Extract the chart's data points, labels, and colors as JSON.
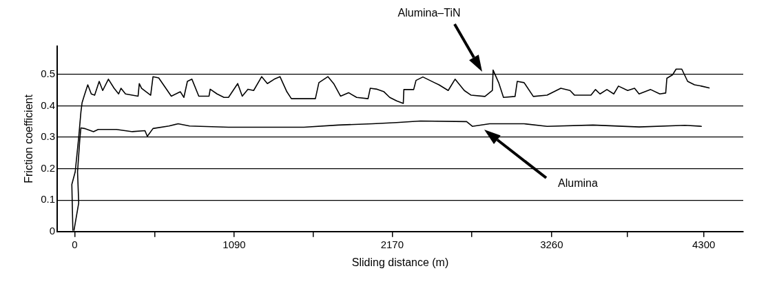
{
  "chart_data": {
    "type": "line",
    "xlabel": "Sliding distance (m)",
    "ylabel": "Friction coefficient",
    "xlim": [
      -120,
      4570
    ],
    "ylim": [
      0,
      0.59
    ],
    "xticks": [
      0,
      {
        "value": 545,
        "label": null
      },
      1090,
      {
        "value": 1630,
        "label": null
      },
      2170,
      {
        "value": 2715,
        "label": null
      },
      3260,
      {
        "value": 3780,
        "label": null
      },
      4300
    ],
    "yticks": [
      0,
      0.1,
      0.2,
      0.3,
      0.4,
      0.5
    ],
    "grid": "y",
    "legend": false,
    "marker": "none",
    "line_style": "solid",
    "annotations": [
      "Alumina–TiN",
      "Alumina"
    ],
    "series": [
      {
        "color": "#000000",
        "x": [
          -13,
          -20,
          3,
          27,
          42,
          50,
          66,
          89,
          113,
          136,
          167,
          191,
          230,
          269,
          300,
          316,
          347,
          433,
          441,
          457,
          519,
          535,
          574,
          660,
          722,
          746,
          770,
          801,
          848,
          918,
          926,
          973,
          1020,
          1051,
          1114,
          1145,
          1184,
          1223,
          1278,
          1317,
          1364,
          1403,
          1450,
          1481,
          1645,
          1669,
          1731,
          1770,
          1817,
          1872,
          1927,
          2005,
          2020,
          2067,
          2114,
          2153,
          2200,
          2246,
          2250,
          2317,
          2333,
          2380,
          2459,
          2490,
          2553,
          2600,
          2663,
          2710,
          2804,
          2855,
          2860,
          2898,
          2931,
          3010,
          3025,
          3072,
          3135,
          3229,
          3323,
          3386,
          3417,
          3529,
          3560,
          3591,
          3638,
          3685,
          3717,
          3780,
          3827,
          3858,
          3937,
          4000,
          4040,
          4048,
          4087,
          4111,
          4150,
          4190,
          4237,
          4284,
          4337
        ],
        "values": [
          0.004,
          0.15,
          0.19,
          0.3,
          0.38,
          0.41,
          0.434,
          0.467,
          0.438,
          0.434,
          0.478,
          0.449,
          0.485,
          0.456,
          0.438,
          0.456,
          0.438,
          0.431,
          0.471,
          0.456,
          0.434,
          0.493,
          0.489,
          0.431,
          0.445,
          0.427,
          0.478,
          0.485,
          0.431,
          0.431,
          0.453,
          0.438,
          0.427,
          0.427,
          0.471,
          0.431,
          0.453,
          0.449,
          0.493,
          0.471,
          0.485,
          0.493,
          0.445,
          0.423,
          0.423,
          0.474,
          0.493,
          0.471,
          0.431,
          0.442,
          0.427,
          0.423,
          0.456,
          0.453,
          0.445,
          0.427,
          0.416,
          0.408,
          0.452,
          0.452,
          0.481,
          0.492,
          0.474,
          0.467,
          0.449,
          0.485,
          0.449,
          0.434,
          0.43,
          0.449,
          0.514,
          0.474,
          0.427,
          0.43,
          0.478,
          0.474,
          0.43,
          0.434,
          0.456,
          0.449,
          0.434,
          0.434,
          0.452,
          0.438,
          0.452,
          0.438,
          0.463,
          0.449,
          0.456,
          0.438,
          0.452,
          0.438,
          0.441,
          0.488,
          0.499,
          0.517,
          0.517,
          0.478,
          0.467,
          0.463,
          0.457
        ]
      },
      {
        "color": "#000000",
        "x": [
          -5,
          27,
          19,
          34,
          42,
          66,
          128,
          160,
          285,
          394,
          480,
          496,
          535,
          644,
          707,
          785,
          1051,
          1332,
          1567,
          1801,
          2036,
          2200,
          2364,
          2679,
          2718,
          2836,
          3072,
          3229,
          3543,
          3858,
          4172,
          4284
        ],
        "values": [
          0.004,
          0.091,
          0.19,
          0.29,
          0.33,
          0.328,
          0.318,
          0.325,
          0.325,
          0.318,
          0.321,
          0.303,
          0.328,
          0.336,
          0.343,
          0.336,
          0.332,
          0.332,
          0.332,
          0.339,
          0.343,
          0.347,
          0.352,
          0.35,
          0.335,
          0.343,
          0.343,
          0.335,
          0.339,
          0.333,
          0.338,
          0.335
        ]
      }
    ]
  }
}
